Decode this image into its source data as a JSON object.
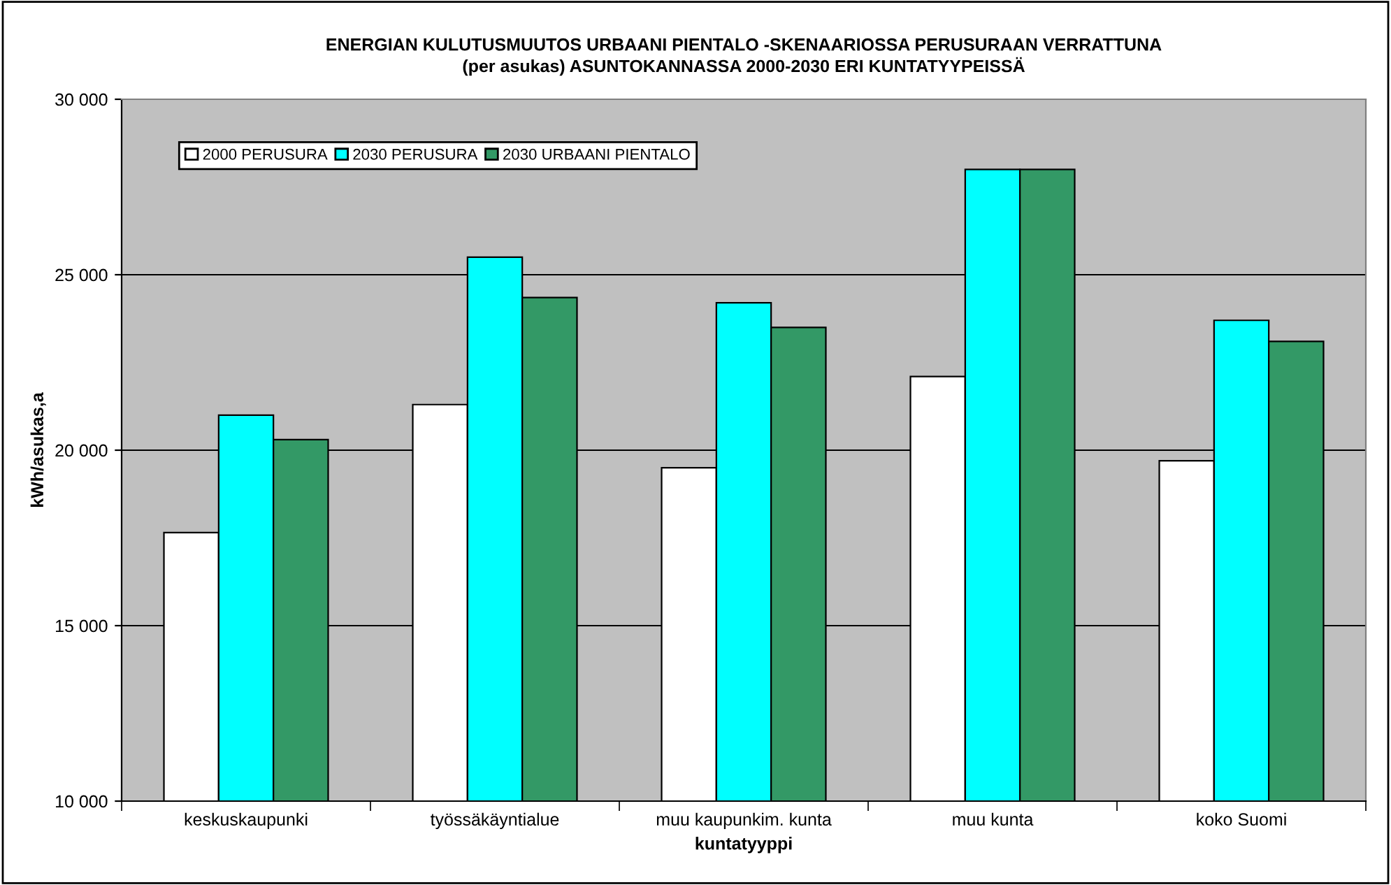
{
  "chart_data": {
    "type": "bar",
    "title": "ENERGIAN KULUTUSMUUTOS URBAANI PIENTALO -SKENAARIOSSA PERUSURAAN VERRATTUNA\n(per asukas) ASUNTOKANNASSA 2000-2030 ERI KUNTATYYPEISSÄ",
    "xlabel": "kuntatyyppi",
    "ylabel": "kWh/asukas,a",
    "categories": [
      "keskuskaupunki",
      "työssäkäyntialue",
      "muu kaupunkim. kunta",
      "muu kunta",
      "koko Suomi"
    ],
    "series": [
      {
        "name": "2000 PERUSURA",
        "color": "#ffffff",
        "values": [
          17650,
          21300,
          19500,
          22100,
          19700
        ]
      },
      {
        "name": "2030 PERUSURA",
        "color": "#00ffff",
        "values": [
          21000,
          25500,
          24200,
          28000,
          23700
        ]
      },
      {
        "name": "2030 URBAANI PIENTALO",
        "color": "#339966",
        "values": [
          20300,
          24350,
          23500,
          28000,
          23100
        ]
      }
    ],
    "ylim": [
      10000,
      30000
    ],
    "yticks": [
      {
        "value": 10000,
        "label": "10 000"
      },
      {
        "value": 15000,
        "label": "15 000"
      },
      {
        "value": 20000,
        "label": "20 000"
      },
      {
        "value": 25000,
        "label": "25 000"
      },
      {
        "value": 30000,
        "label": "30 000"
      }
    ],
    "grid": "y",
    "legend": "top left"
  }
}
